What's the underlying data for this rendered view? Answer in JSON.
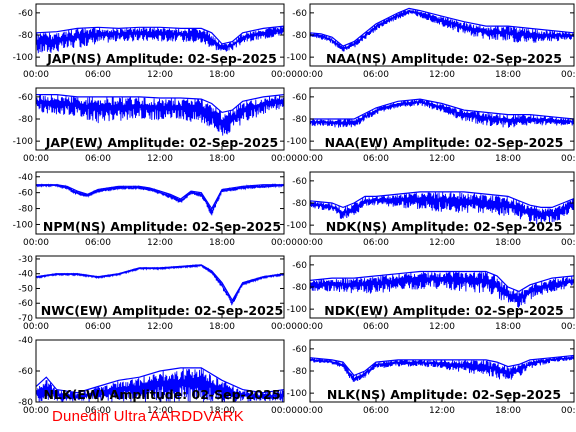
{
  "footer": "Dunedin Ultra AARDDVARK",
  "chart_data": [
    {
      "type": "line",
      "title": "JAP(NS) Amplitude: 02-Sep-2025",
      "x_ticks": [
        "00:00",
        "06:00",
        "12:00",
        "18:00",
        "00:00"
      ],
      "y_ticks": [
        -60,
        -80,
        -100
      ],
      "ylim": [
        -108,
        -52
      ],
      "series": [
        {
          "color": "#0000ff",
          "x": [
            0,
            2,
            4,
            6,
            8,
            10,
            12,
            14,
            16,
            17,
            18,
            19,
            20,
            22,
            24
          ],
          "y": [
            -78,
            -77,
            -74,
            -73,
            -74,
            -73,
            -73,
            -74,
            -74,
            -78,
            -88,
            -86,
            -78,
            -74,
            -72
          ],
          "low": [
            -98,
            -96,
            -92,
            -88,
            -86,
            -86,
            -86,
            -86,
            -88,
            -92,
            -96,
            -94,
            -88,
            -84,
            -80
          ]
        }
      ]
    },
    {
      "type": "line",
      "title": "NAA(NS) Amplitude: 02-Sep-2025",
      "x_ticks": [
        "00:00",
        "06:00",
        "12:00",
        "18:00",
        "00:00"
      ],
      "y_ticks": [
        -60,
        -80,
        -100
      ],
      "ylim": [
        -108,
        -52
      ],
      "series": [
        {
          "color": "#0000ff",
          "x": [
            0,
            1,
            2,
            3,
            4,
            6,
            8,
            9,
            10,
            12,
            14,
            16,
            18,
            20,
            22,
            24
          ],
          "y": [
            -78,
            -79,
            -82,
            -90,
            -86,
            -70,
            -60,
            -56,
            -58,
            -63,
            -68,
            -72,
            -72,
            -74,
            -76,
            -78
          ],
          "low": [
            -82,
            -84,
            -88,
            -95,
            -92,
            -76,
            -66,
            -62,
            -64,
            -72,
            -80,
            -84,
            -86,
            -88,
            -86,
            -84
          ]
        }
      ]
    },
    {
      "type": "line",
      "title": "JAP(EW) Amplitude: 02-Sep-2025",
      "x_ticks": [
        "00:00",
        "06:00",
        "12:00",
        "18:00",
        "00:00"
      ],
      "y_ticks": [
        -60,
        -80,
        -100
      ],
      "ylim": [
        -108,
        -52
      ],
      "series": [
        {
          "color": "#0000ff",
          "x": [
            0,
            2,
            4,
            6,
            8,
            10,
            12,
            14,
            16,
            17,
            18,
            19,
            20,
            22,
            24
          ],
          "y": [
            -58,
            -58,
            -60,
            -60,
            -60,
            -60,
            -61,
            -61,
            -62,
            -66,
            -74,
            -72,
            -64,
            -60,
            -58
          ],
          "low": [
            -74,
            -76,
            -78,
            -84,
            -82,
            -80,
            -82,
            -82,
            -84,
            -88,
            -96,
            -92,
            -84,
            -76,
            -70
          ]
        }
      ]
    },
    {
      "type": "line",
      "title": "NAA(EW) Amplitude: 02-Sep-2025",
      "x_ticks": [
        "00:00",
        "06:00",
        "12:00",
        "18:00",
        "00:00"
      ],
      "y_ticks": [
        -60,
        -80,
        -100
      ],
      "ylim": [
        -108,
        -52
      ],
      "series": [
        {
          "color": "#0000ff",
          "x": [
            0,
            2,
            4,
            6,
            8,
            10,
            12,
            14,
            16,
            18,
            20,
            22,
            24
          ],
          "y": [
            -80,
            -80,
            -80,
            -70,
            -64,
            -62,
            -66,
            -72,
            -74,
            -76,
            -76,
            -78,
            -80
          ],
          "low": [
            -86,
            -88,
            -88,
            -76,
            -70,
            -68,
            -74,
            -82,
            -86,
            -88,
            -86,
            -86,
            -86
          ]
        }
      ]
    },
    {
      "type": "line",
      "title": "NPM(NS) Amplitude: 02-Sep-2025",
      "x_ticks": [
        "00:00",
        "06:00",
        "12:00",
        "18:00",
        "00:00"
      ],
      "y_ticks": [
        -40,
        -60,
        -80,
        -100
      ],
      "ylim": [
        -112,
        -34
      ],
      "series": [
        {
          "color": "#0000ff",
          "x": [
            0,
            2,
            3,
            4,
            5,
            6,
            8,
            10,
            11,
            12,
            13,
            14,
            15,
            16,
            17,
            18,
            20,
            22,
            24
          ],
          "y": [
            -50,
            -50,
            -52,
            -58,
            -62,
            -56,
            -52,
            -52,
            -54,
            -58,
            -62,
            -68,
            -58,
            -60,
            -80,
            -56,
            -52,
            -50,
            -50
          ],
          "low": [
            -52,
            -52,
            -56,
            -64,
            -66,
            -60,
            -56,
            -56,
            -58,
            -62,
            -68,
            -74,
            -62,
            -66,
            -90,
            -60,
            -56,
            -54,
            -52
          ]
        }
      ]
    },
    {
      "type": "line",
      "title": "NDK(NS) Amplitude: 02-Sep-2025",
      "x_ticks": [
        "00:00",
        "06:00",
        "12:00",
        "18:00",
        "00:00"
      ],
      "y_ticks": [
        -60,
        -80,
        -100
      ],
      "ylim": [
        -108,
        -52
      ],
      "series": [
        {
          "color": "#0000ff",
          "x": [
            0,
            2,
            3,
            4,
            5,
            6,
            8,
            10,
            12,
            14,
            16,
            18,
            19,
            20,
            21,
            22,
            23,
            24
          ],
          "y": [
            -78,
            -80,
            -84,
            -80,
            -74,
            -74,
            -72,
            -70,
            -70,
            -70,
            -72,
            -74,
            -78,
            -82,
            -84,
            -84,
            -80,
            -76
          ],
          "low": [
            -84,
            -88,
            -96,
            -92,
            -84,
            -82,
            -84,
            -86,
            -88,
            -90,
            -90,
            -92,
            -96,
            -98,
            -100,
            -98,
            -94,
            -86
          ]
        }
      ]
    },
    {
      "type": "line",
      "title": "NWC(EW) Amplitude: 02-Sep-2025",
      "x_ticks": [
        "00:00",
        "06:00",
        "12:00",
        "18:00",
        "00:00"
      ],
      "y_ticks": [
        -30,
        -40,
        -50,
        -60,
        -70
      ],
      "ylim": [
        -70,
        -28
      ],
      "series": [
        {
          "color": "#0000ff",
          "x": [
            0,
            2,
            4,
            6,
            8,
            10,
            12,
            14,
            16,
            17,
            18,
            19,
            20,
            22,
            24
          ],
          "y": [
            -42,
            -40,
            -40,
            -42,
            -40,
            -36,
            -36,
            -35,
            -34,
            -38,
            -46,
            -58,
            -46,
            -42,
            -40
          ],
          "low": [
            -43,
            -41,
            -41,
            -43,
            -41,
            -37,
            -37,
            -36,
            -35,
            -40,
            -50,
            -62,
            -48,
            -43,
            -41
          ]
        }
      ]
    },
    {
      "type": "line",
      "title": "NDK(EW) Amplitude: 02-Sep-2025",
      "x_ticks": [
        "00:00",
        "06:00",
        "12:00",
        "18:00",
        "00:00"
      ],
      "y_ticks": [
        -60,
        -80,
        -100
      ],
      "ylim": [
        -108,
        -52
      ],
      "series": [
        {
          "color": "#0000ff",
          "x": [
            0,
            2,
            4,
            6,
            8,
            10,
            12,
            14,
            16,
            17,
            18,
            19,
            20,
            22,
            24
          ],
          "y": [
            -74,
            -72,
            -72,
            -70,
            -68,
            -66,
            -66,
            -66,
            -66,
            -70,
            -80,
            -84,
            -78,
            -72,
            -70
          ],
          "low": [
            -84,
            -84,
            -86,
            -86,
            -84,
            -82,
            -82,
            -84,
            -86,
            -90,
            -96,
            -100,
            -92,
            -86,
            -80
          ]
        }
      ]
    },
    {
      "type": "line",
      "title": "NLK(EW) Amplitude: 02-Sep-2025",
      "x_ticks": [
        "00:00",
        "06:00",
        "12:00",
        "18:00",
        "00:00"
      ],
      "y_ticks": [
        -40,
        -60,
        -80
      ],
      "ylim": [
        -80,
        -40
      ],
      "series": [
        {
          "color": "#0000ff",
          "x": [
            0,
            1,
            2,
            4,
            6,
            8,
            10,
            12,
            14,
            16,
            18,
            20,
            22,
            24
          ],
          "y": [
            -70,
            -64,
            -72,
            -74,
            -70,
            -66,
            -64,
            -60,
            -58,
            -58,
            -66,
            -72,
            -74,
            -72
          ],
          "low": [
            -80,
            -80,
            -80,
            -80,
            -80,
            -80,
            -80,
            -80,
            -80,
            -80,
            -80,
            -80,
            -80,
            -80
          ]
        }
      ]
    },
    {
      "type": "line",
      "title": "NLK(NS) Amplitude: 02-Sep-2025",
      "x_ticks": [
        "00:00",
        "06:00",
        "12:00",
        "18:00",
        "00:00"
      ],
      "y_ticks": [
        -60,
        -80,
        -100
      ],
      "ylim": [
        -108,
        -52
      ],
      "series": [
        {
          "color": "#0000ff",
          "x": [
            0,
            2,
            3,
            4,
            5,
            6,
            8,
            10,
            12,
            14,
            16,
            17,
            18,
            19,
            20,
            22,
            24
          ],
          "y": [
            -68,
            -70,
            -72,
            -84,
            -80,
            -72,
            -70,
            -70,
            -70,
            -70,
            -70,
            -72,
            -76,
            -74,
            -70,
            -68,
            -66
          ],
          "low": [
            -72,
            -74,
            -78,
            -92,
            -86,
            -78,
            -76,
            -76,
            -78,
            -82,
            -84,
            -88,
            -90,
            -86,
            -78,
            -72,
            -70
          ]
        }
      ]
    }
  ]
}
